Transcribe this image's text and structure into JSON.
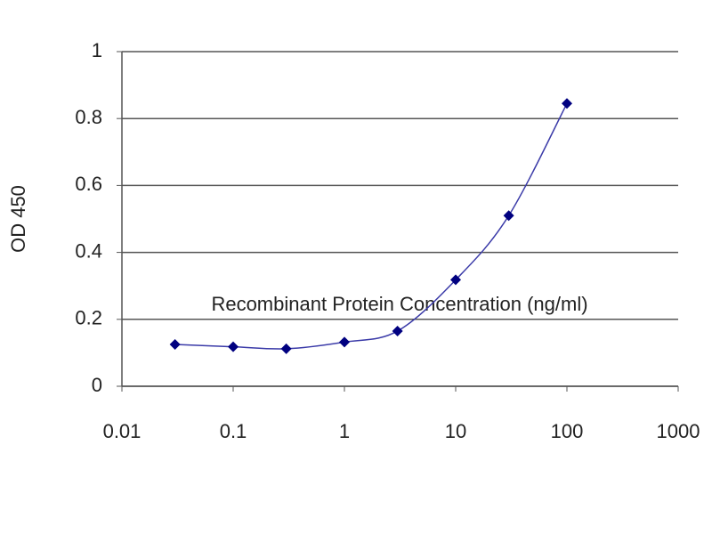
{
  "chart_data": {
    "type": "line",
    "x_label": "Recombinant Protein Concentration (ng/ml)",
    "y_label": "OD 450",
    "xscale": "log",
    "xlim": [
      0.01,
      1000
    ],
    "xticks": [
      0.01,
      0.1,
      1,
      10,
      100,
      1000
    ],
    "ylim": [
      0,
      1
    ],
    "yticks": [
      0,
      0.2,
      0.4,
      0.6,
      0.8,
      1
    ],
    "grid": true,
    "smooth": true,
    "series": [
      {
        "color": "#000080",
        "line_color": "#3a3aa8",
        "x": [
          0.03,
          0.1,
          0.3,
          1,
          3,
          10,
          30,
          100
        ],
        "values": [
          0.125,
          0.118,
          0.112,
          0.132,
          0.165,
          0.318,
          0.51,
          0.845
        ]
      }
    ]
  }
}
